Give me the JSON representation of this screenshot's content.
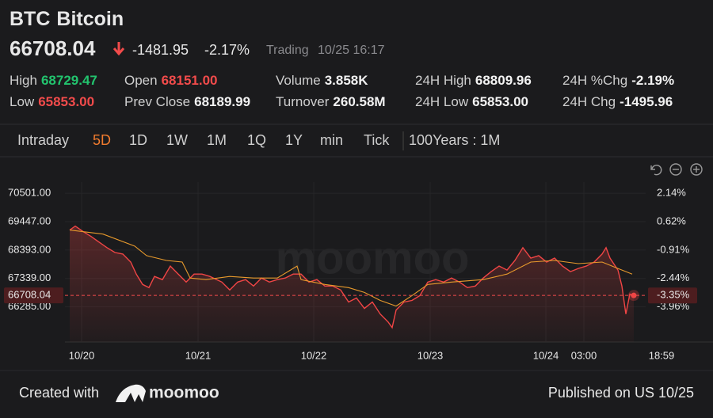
{
  "header": {
    "symbol": "BTC",
    "name": "Bitcoin",
    "price": "66708.04",
    "change": "-1481.95",
    "change_pct": "-2.17%",
    "status": "Trading",
    "time": "10/25 16:17"
  },
  "colors": {
    "up": "#22c46e",
    "down": "#f24b4b"
  },
  "stats": [
    [
      {
        "label": "High",
        "value": "68729.47",
        "tone": "up"
      },
      {
        "label": "Open",
        "value": "68151.00",
        "tone": "down"
      },
      {
        "label": "Volume",
        "value": "3.858K"
      },
      {
        "label": "24H High",
        "value": "68809.96"
      },
      {
        "label": "24H %Chg",
        "value": "-2.19%"
      }
    ],
    [
      {
        "label": "Low",
        "value": "65853.00",
        "tone": "down"
      },
      {
        "label": "Prev Close",
        "value": "68189.99"
      },
      {
        "label": "Turnover",
        "value": "260.58M"
      },
      {
        "label": "24H Low",
        "value": "65853.00"
      },
      {
        "label": "24H Chg",
        "value": "-1495.96"
      }
    ]
  ],
  "tabs": [
    "Intraday",
    "5D",
    "1D",
    "1W",
    "1M",
    "1Q",
    "1Y",
    "min",
    "Tick"
  ],
  "active_tab": 1,
  "period": "100Years : 1M",
  "chart_data": {
    "type": "line",
    "watermark": "moomoo",
    "grid": true,
    "xlim": [
      0,
      763
    ],
    "xticks": [
      {
        "value": 21,
        "label": "10/20"
      },
      {
        "value": 168,
        "label": "10/21"
      },
      {
        "value": 314,
        "label": "10/22"
      },
      {
        "value": 461,
        "label": "10/23"
      },
      {
        "value": 607,
        "label": "10/24"
      },
      {
        "value": 655,
        "label": "03:00"
      },
      {
        "value": 753,
        "label": "18:59"
      }
    ],
    "ylim": [
      64979,
      70917
    ],
    "yticks": [
      {
        "value": 70501,
        "label": "70501.00"
      },
      {
        "value": 69447,
        "label": "69447.00"
      },
      {
        "value": 68393,
        "label": "68393.00"
      },
      {
        "value": 67339,
        "label": "67339.00"
      },
      {
        "value": 66285,
        "label": "66285.00"
      }
    ],
    "y2lim": [
      -5.85,
      2.74
    ],
    "y2ticks": [
      {
        "value": 2.14,
        "label": "2.14%"
      },
      {
        "value": 0.62,
        "label": "0.62%"
      },
      {
        "value": -0.91,
        "label": "-0.91%"
      },
      {
        "value": -2.44,
        "label": "-2.44%"
      },
      {
        "value": -3.96,
        "label": "-3.96%"
      }
    ],
    "last": {
      "value": 66708.04,
      "label": "66708.04"
    },
    "last_pct": {
      "value": -3.35,
      "label": "-3.35%"
    },
    "series": [
      {
        "color": "#f04545",
        "x": [
          6,
          13,
          23,
          33,
          43,
          53,
          63,
          73,
          83,
          90,
          98,
          106,
          113,
          123,
          133,
          143,
          153,
          163,
          173,
          183,
          198,
          208,
          218,
          228,
          238,
          248,
          258,
          268,
          278,
          288,
          298,
          308,
          318,
          328,
          338,
          348,
          358,
          368,
          378,
          388,
          398,
          408,
          413,
          418,
          428,
          438,
          448,
          458,
          468,
          478,
          488,
          498,
          508,
          518,
          528,
          538,
          548,
          558,
          568,
          578,
          588,
          598,
          608,
          618,
          628,
          638,
          648,
          658,
          668,
          678,
          683,
          688,
          698,
          703,
          708,
          713,
          718
        ],
        "values": [
          69135,
          69284,
          69076,
          68898,
          68690,
          68482,
          68304,
          68245,
          67948,
          67502,
          67116,
          66998,
          67413,
          67294,
          67799,
          67502,
          67205,
          67502,
          67502,
          67413,
          67205,
          66909,
          67205,
          67294,
          67057,
          67354,
          67205,
          67294,
          67354,
          67502,
          67502,
          67205,
          67294,
          67057,
          67057,
          66909,
          66463,
          66612,
          66226,
          66463,
          66018,
          65721,
          65513,
          66166,
          66463,
          66523,
          66701,
          67205,
          67294,
          67205,
          67354,
          67205,
          66998,
          67057,
          67354,
          67591,
          67799,
          67651,
          68007,
          68482,
          68096,
          68185,
          67948,
          68096,
          67799,
          67591,
          67710,
          67799,
          67948,
          68245,
          68482,
          68096,
          67651,
          67057,
          66018,
          66760,
          66708.04
        ]
      },
      {
        "color": "#e89a2c",
        "x": [
          6,
          48,
          88,
          103,
          128,
          148,
          158,
          178,
          208,
          238,
          268,
          293,
          298,
          328,
          358,
          378,
          398,
          418,
          438,
          458,
          488,
          528,
          558,
          588,
          618,
          648,
          678,
          698,
          716
        ],
        "values": [
          69135,
          68987,
          68541,
          68185,
          68007,
          67948,
          67354,
          67294,
          67413,
          67354,
          67354,
          67799,
          67294,
          67116,
          66998,
          66820,
          66523,
          66315,
          66701,
          67116,
          67205,
          67294,
          67502,
          67948,
          68007,
          67888,
          67948,
          67710,
          67502
        ]
      }
    ]
  },
  "footer": {
    "created_with": "Created with",
    "brand": "moomoo",
    "published": "Published on US 10/25"
  }
}
